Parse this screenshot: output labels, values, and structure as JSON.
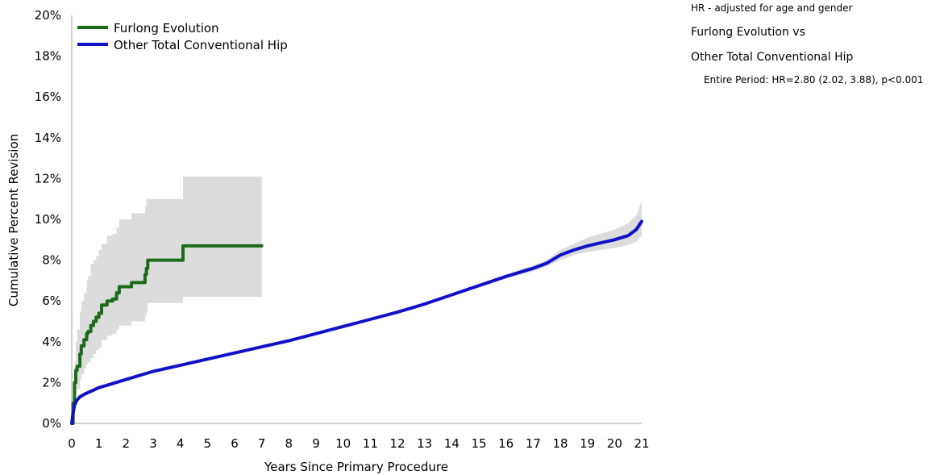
{
  "chart_data": {
    "type": "line",
    "xlabel": "Years Since Primary Procedure",
    "ylabel": "Cumulative Percent Revision",
    "xlim": [
      0,
      21
    ],
    "ylim": [
      0,
      20
    ],
    "x_ticks": [
      "0",
      "1",
      "2",
      "3",
      "4",
      "5",
      "6",
      "7",
      "8",
      "9",
      "10",
      "11",
      "12",
      "13",
      "14",
      "15",
      "16",
      "17",
      "18",
      "19",
      "20",
      "21"
    ],
    "y_ticks": [
      "0%",
      "2%",
      "4%",
      "6%",
      "8%",
      "10%",
      "12%",
      "14%",
      "16%",
      "18%",
      "20%"
    ],
    "grid": false,
    "legend_position": "top-left",
    "series": [
      {
        "name": "Furlong Evolution",
        "color": "#1a6b1a",
        "step": true,
        "x": [
          0,
          0.05,
          0.1,
          0.15,
          0.2,
          0.3,
          0.35,
          0.45,
          0.55,
          0.6,
          0.7,
          0.8,
          0.9,
          1.0,
          1.1,
          1.3,
          1.5,
          1.65,
          1.75,
          1.85,
          2.2,
          2.7,
          2.75,
          2.8,
          4.1,
          7.0
        ],
        "y": [
          0,
          1.0,
          2.0,
          2.6,
          2.8,
          3.4,
          3.8,
          4.1,
          4.4,
          4.5,
          4.8,
          5.0,
          5.2,
          5.4,
          5.8,
          6.0,
          6.1,
          6.4,
          6.7,
          6.7,
          6.9,
          7.3,
          7.6,
          8.0,
          8.7,
          8.7
        ],
        "ci_upper": [
          0,
          1.8,
          3.0,
          4.0,
          4.6,
          5.5,
          6.0,
          6.4,
          7.0,
          7.2,
          7.8,
          8.0,
          8.2,
          8.5,
          8.8,
          9.2,
          9.3,
          9.6,
          10.0,
          10.0,
          10.3,
          10.6,
          11.0,
          11.0,
          12.1,
          12.1
        ],
        "ci_lower": [
          0,
          0.3,
          1.0,
          1.5,
          1.7,
          2.1,
          2.4,
          2.7,
          2.9,
          3.0,
          3.2,
          3.4,
          3.6,
          3.7,
          4.1,
          4.3,
          4.4,
          4.6,
          4.8,
          4.8,
          5.0,
          5.3,
          5.5,
          5.9,
          6.2,
          6.2
        ]
      },
      {
        "name": "Other Total Conventional Hip",
        "color": "#1010c8",
        "step": false,
        "x": [
          0,
          0.05,
          0.1,
          0.2,
          0.3,
          0.5,
          0.75,
          1,
          1.5,
          2,
          2.5,
          3,
          4,
          5,
          6,
          7,
          8,
          9,
          10,
          11,
          12,
          13,
          14,
          15,
          16,
          17,
          17.5,
          18,
          18.5,
          19,
          19.5,
          20,
          20.5,
          20.8,
          21
        ],
        "y": [
          0,
          0.5,
          0.9,
          1.15,
          1.3,
          1.45,
          1.6,
          1.75,
          1.95,
          2.15,
          2.35,
          2.55,
          2.85,
          3.15,
          3.45,
          3.75,
          4.05,
          4.4,
          4.75,
          5.1,
          5.45,
          5.85,
          6.3,
          6.75,
          7.2,
          7.6,
          7.85,
          8.25,
          8.5,
          8.7,
          8.85,
          9.0,
          9.2,
          9.5,
          9.9
        ],
        "ci_upper": [
          0,
          0.55,
          0.95,
          1.2,
          1.35,
          1.5,
          1.65,
          1.8,
          2.0,
          2.2,
          2.4,
          2.6,
          2.9,
          3.2,
          3.5,
          3.8,
          4.1,
          4.45,
          4.8,
          5.15,
          5.5,
          5.9,
          6.35,
          6.8,
          7.3,
          7.75,
          8.0,
          8.5,
          8.8,
          9.1,
          9.3,
          9.5,
          9.8,
          10.2,
          10.9
        ],
        "ci_lower": [
          0,
          0.45,
          0.85,
          1.1,
          1.25,
          1.4,
          1.55,
          1.7,
          1.9,
          2.1,
          2.3,
          2.5,
          2.8,
          3.1,
          3.4,
          3.7,
          4.0,
          4.35,
          4.7,
          5.05,
          5.4,
          5.8,
          6.25,
          6.7,
          7.1,
          7.45,
          7.7,
          8.0,
          8.25,
          8.4,
          8.5,
          8.6,
          8.75,
          8.9,
          9.2
        ]
      }
    ]
  },
  "hr_table": {
    "title": "HR - adjusted for age and gender",
    "comparison_line1": "Furlong Evolution vs",
    "comparison_line2": "Other Total Conventional Hip",
    "entire_period": "Entire Period: HR=2.80 (2.02, 3.88), p<0.001"
  },
  "colors": {
    "ci_band": "#dcdcdc",
    "axis": "#d0d0d0"
  }
}
